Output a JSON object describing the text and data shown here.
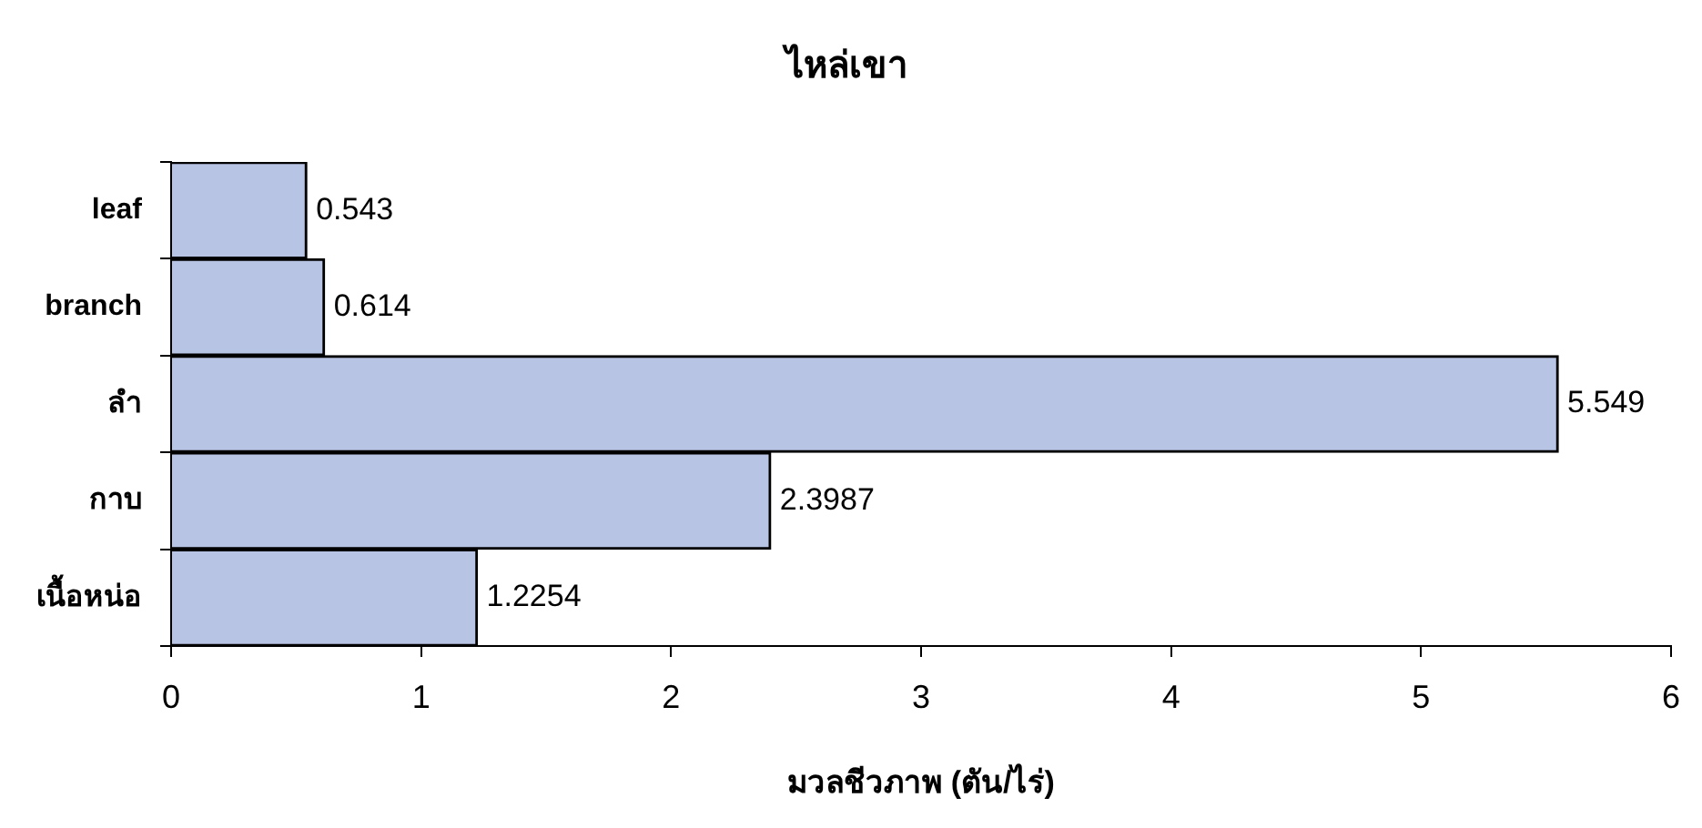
{
  "chart_data": {
    "type": "bar",
    "orientation": "horizontal",
    "title": "ไหล่เขา",
    "xlabel": "มวลชีวภาพ (ตัน/ไร่)",
    "categories": [
      "leaf",
      "branch",
      "ลำ",
      "กาบ",
      "เนื้อหน่อ"
    ],
    "values": [
      0.543,
      0.614,
      5.549,
      2.3987,
      1.2254
    ],
    "color": "#b8c4e4",
    "xlim": [
      0,
      6
    ],
    "xticks": [
      0,
      1,
      2,
      3,
      4,
      5,
      6
    ],
    "data_labels": true
  }
}
